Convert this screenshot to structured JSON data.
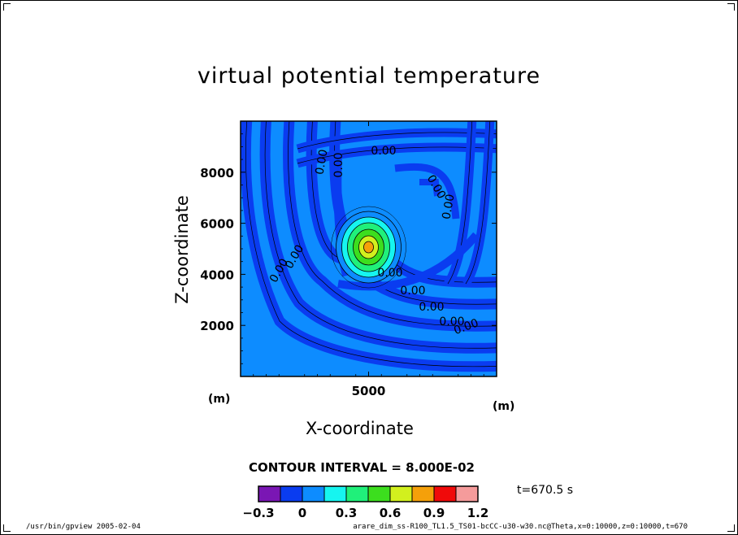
{
  "chart_data": {
    "type": "heatmap",
    "title": "virtual potential temperature",
    "xlabel": "X-coordinate",
    "ylabel": "Z-coordinate",
    "x_unit": "(m)",
    "x_unit_secondary": "(m)",
    "xlim": [
      0,
      10000
    ],
    "ylim": [
      0,
      10000
    ],
    "x_ticks": [
      5000
    ],
    "y_ticks": [
      2000,
      4000,
      6000,
      8000
    ],
    "contour_interval_label": "CONTOUR INTERVAL = 8.000E-02",
    "contour_labels": [
      "0.00",
      "0.00",
      "0.00",
      "0.00",
      "0.00",
      "0.00",
      "0.00",
      "0.00",
      "0.00",
      "0.00",
      "0.00",
      "0.00",
      "0.00"
    ],
    "bubble_center": {
      "x": 5000,
      "z": 5000
    },
    "colorbar": {
      "bounds": [
        -0.3,
        -0.15,
        0.0,
        0.15,
        0.3,
        0.45,
        0.6,
        0.75,
        0.9,
        1.05,
        1.2
      ],
      "colors": [
        "#7a16b4",
        "#0a3cf0",
        "#0d8cff",
        "#16f5f0",
        "#20f07a",
        "#3cde1e",
        "#d2f01e",
        "#f5a00a",
        "#f00a0a",
        "#f59b9b"
      ],
      "tick_labels": [
        "−0.3",
        "0",
        "0.3",
        "0.6",
        "0.9",
        "1.2"
      ]
    },
    "time_label": "t=670.5  s"
  },
  "footer": {
    "left": "/usr/bin/gpview  2005-02-04",
    "right": "arare_dim_ss-R100_TL1.5_TS01-bcCC-u30-w30.nc@Theta,x=0:10000,z=0:10000,t=670"
  },
  "colors": {
    "band_dark": "#0a3cf0",
    "band_light": "#0d8cff"
  }
}
